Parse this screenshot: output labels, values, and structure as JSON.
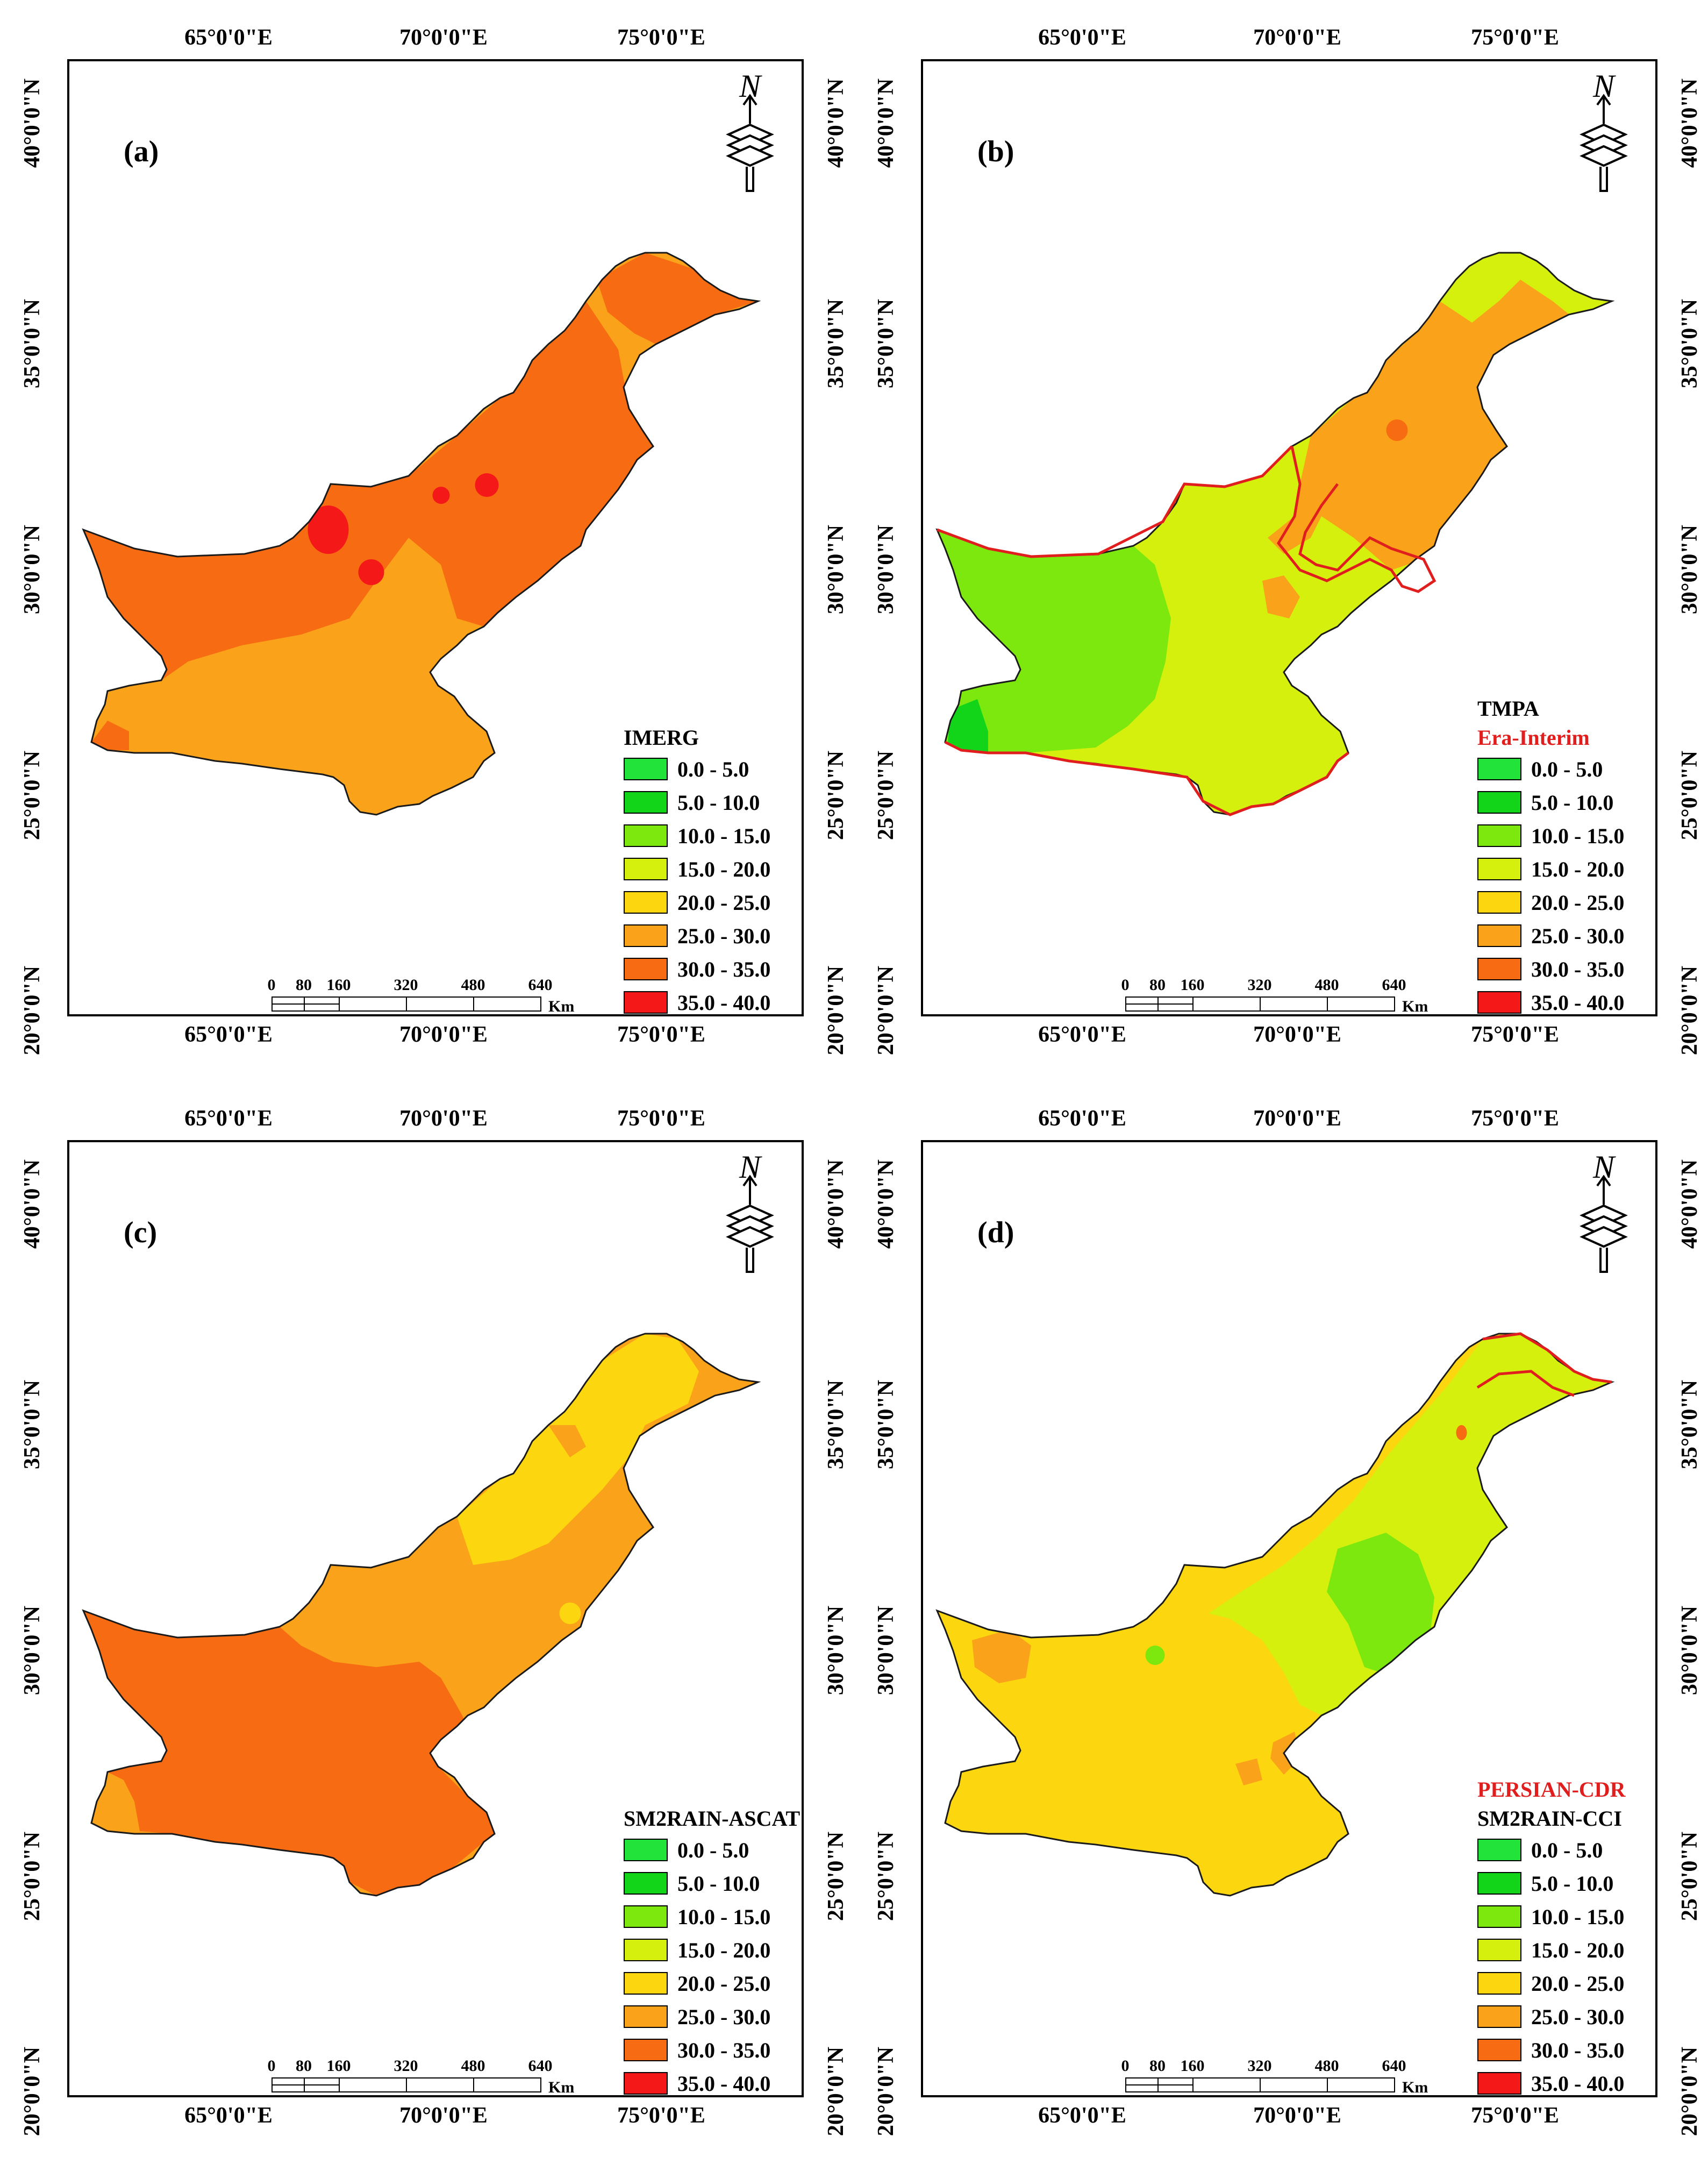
{
  "axes": {
    "lon_ticks": [
      "65°0'0\"E",
      "70°0'0\"E",
      "75°0'0\"E"
    ],
    "lat_ticks": [
      "40°0'0\"N",
      "35°0'0\"N",
      "30°0'0\"N",
      "25°0'0\"N",
      "20°0'0\"N"
    ]
  },
  "legend_classes": [
    {
      "label": "0.0 - 5.0",
      "color": "#21e33a"
    },
    {
      "label": "5.0 - 10.0",
      "color": "#12d51a"
    },
    {
      "label": "10.0 - 15.0",
      "color": "#7de80e"
    },
    {
      "label": "15.0 - 20.0",
      "color": "#d4f00c"
    },
    {
      "label": "20.0 - 25.0",
      "color": "#fcd60e"
    },
    {
      "label": "25.0 - 30.0",
      "color": "#f9a21a"
    },
    {
      "label": "30.0 - 35.0",
      "color": "#f76c12"
    },
    {
      "label": "35.0 - 40.0",
      "color": "#f41818"
    }
  ],
  "scale_bar": {
    "ticks": [
      "0",
      "80",
      "160",
      "320",
      "480",
      "640"
    ],
    "unit": "Km"
  },
  "north_label": "N",
  "panels": [
    {
      "label": "(a)",
      "titles": [
        {
          "text": "IMERG",
          "color": "#000000"
        }
      ],
      "base_color": "#f9a21a"
    },
    {
      "label": "(b)",
      "titles": [
        {
          "text": "TMPA",
          "color": "#000000"
        },
        {
          "text": "Era-Interim",
          "color": "#e01e1e"
        }
      ],
      "base_color": "#d4f00c"
    },
    {
      "label": "(c)",
      "titles": [
        {
          "text": "SM2RAIN-ASCAT",
          "color": "#000000"
        }
      ],
      "base_color": "#f9a21a"
    },
    {
      "label": "(d)",
      "titles": [
        {
          "text": "PERSIAN-CDR",
          "color": "#e01e1e"
        },
        {
          "text": "SM2RAIN-CCI",
          "color": "#000000"
        }
      ],
      "base_color": "#fcd60e"
    }
  ]
}
